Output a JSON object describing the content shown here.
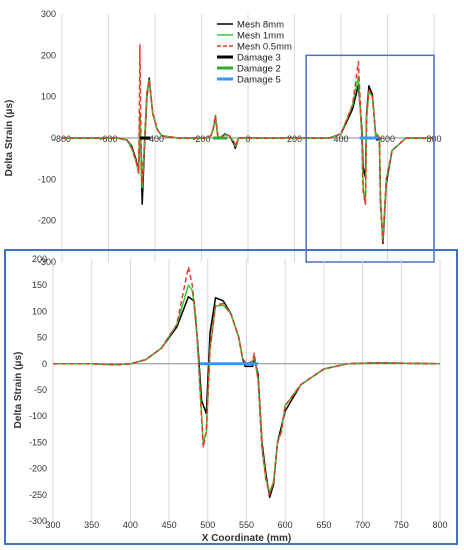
{
  "chart_data": [
    {
      "type": "line",
      "title": "",
      "xlabel": "",
      "ylabel": "Delta Strain (μs)",
      "xlim": [
        -800,
        800
      ],
      "ylim": [
        -300,
        300
      ],
      "xticks": [
        -800,
        -600,
        -400,
        -200,
        0,
        200,
        400,
        600,
        800
      ],
      "yticks": [
        -300,
        -200,
        -100,
        0,
        100,
        200,
        300
      ],
      "tick_labels_x": [
        "-800",
        "-600",
        "-400",
        "-200",
        "0",
        "200",
        "400",
        "600",
        "800"
      ],
      "tick_labels_y": [
        "-300",
        "-200",
        "-100",
        "0",
        "100",
        "200",
        "300"
      ],
      "grid": "vertical",
      "legend": "top-center",
      "zoom_box_x": [
        250,
        800
      ],
      "zoom_box_y": [
        -300,
        200
      ],
      "series": [
        {
          "name": "Mesh 8mm",
          "color": "#000000",
          "dash": "solid",
          "points": [
            [
              -800,
              0
            ],
            [
              -560,
              0
            ],
            [
              -520,
              -5
            ],
            [
              -500,
              -20
            ],
            [
              -480,
              -55
            ],
            [
              -470,
              -80
            ],
            [
              -465,
              60
            ],
            [
              -460,
              -40
            ],
            [
              -455,
              -160
            ],
            [
              -445,
              -20
            ],
            [
              -435,
              100
            ],
            [
              -425,
              145
            ],
            [
              -410,
              60
            ],
            [
              -390,
              20
            ],
            [
              -370,
              5
            ],
            [
              -300,
              0
            ],
            [
              -180,
              0
            ],
            [
              -160,
              5
            ],
            [
              -150,
              20
            ],
            [
              -140,
              50
            ],
            [
              -130,
              5
            ],
            [
              -120,
              0
            ],
            [
              -100,
              10
            ],
            [
              -80,
              5
            ],
            [
              -60,
              -15
            ],
            [
              -55,
              -25
            ],
            [
              -40,
              0
            ],
            [
              200,
              0
            ],
            [
              350,
              0
            ],
            [
              400,
              10
            ],
            [
              450,
              70
            ],
            [
              475,
              128
            ],
            [
              490,
              20
            ],
            [
              495,
              -70
            ],
            [
              505,
              -95
            ],
            [
              510,
              60
            ],
            [
              520,
              126
            ],
            [
              535,
              105
            ],
            [
              550,
              0
            ],
            [
              555,
              -5
            ],
            [
              565,
              0
            ],
            [
              570,
              -150
            ],
            [
              580,
              -255
            ],
            [
              595,
              -110
            ],
            [
              620,
              -30
            ],
            [
              680,
              0
            ],
            [
              800,
              0
            ]
          ]
        },
        {
          "name": "Mesh 1mm",
          "color": "#33cc33",
          "dash": "solid",
          "points": [
            [
              -800,
              0
            ],
            [
              -560,
              0
            ],
            [
              -520,
              -5
            ],
            [
              -500,
              -25
            ],
            [
              -480,
              -60
            ],
            [
              -470,
              -85
            ],
            [
              -465,
              60
            ],
            [
              -460,
              -30
            ],
            [
              -455,
              -120
            ],
            [
              -445,
              -10
            ],
            [
              -435,
              110
            ],
            [
              -425,
              140
            ],
            [
              -410,
              60
            ],
            [
              -390,
              20
            ],
            [
              -370,
              5
            ],
            [
              -300,
              0
            ],
            [
              -180,
              0
            ],
            [
              -160,
              5
            ],
            [
              -150,
              20
            ],
            [
              -140,
              55
            ],
            [
              -130,
              5
            ],
            [
              -120,
              0
            ],
            [
              -100,
              8
            ],
            [
              -80,
              5
            ],
            [
              -60,
              -10
            ],
            [
              -55,
              -20
            ],
            [
              -40,
              0
            ],
            [
              200,
              0
            ],
            [
              350,
              0
            ],
            [
              400,
              10
            ],
            [
              450,
              80
            ],
            [
              475,
              150
            ],
            [
              490,
              0
            ],
            [
              495,
              -120
            ],
            [
              505,
              -160
            ],
            [
              510,
              50
            ],
            [
              520,
              112
            ],
            [
              535,
              100
            ],
            [
              550,
              0
            ],
            [
              555,
              10
            ],
            [
              565,
              0
            ],
            [
              570,
              -160
            ],
            [
              580,
              -245
            ],
            [
              595,
              -100
            ],
            [
              620,
              -30
            ],
            [
              680,
              0
            ],
            [
              800,
              0
            ]
          ]
        },
        {
          "name": "Mesh 0.5mm",
          "color": "#e53a2b",
          "dash": "dashed",
          "points": [
            [
              -800,
              0
            ],
            [
              -560,
              0
            ],
            [
              -520,
              -5
            ],
            [
              -500,
              -25
            ],
            [
              -480,
              -60
            ],
            [
              -470,
              -85
            ],
            [
              -465,
              225
            ],
            [
              -460,
              -30
            ],
            [
              -455,
              -110
            ],
            [
              -445,
              -10
            ],
            [
              -435,
              110
            ],
            [
              -425,
              140
            ],
            [
              -410,
              60
            ],
            [
              -390,
              20
            ],
            [
              -370,
              5
            ],
            [
              -300,
              0
            ],
            [
              -180,
              0
            ],
            [
              -160,
              5
            ],
            [
              -150,
              20
            ],
            [
              -140,
              55
            ],
            [
              -130,
              5
            ],
            [
              -120,
              0
            ],
            [
              -100,
              8
            ],
            [
              -80,
              5
            ],
            [
              -60,
              -10
            ],
            [
              -55,
              -20
            ],
            [
              -40,
              0
            ],
            [
              200,
              0
            ],
            [
              350,
              0
            ],
            [
              400,
              10
            ],
            [
              450,
              80
            ],
            [
              475,
              185
            ],
            [
              490,
              0
            ],
            [
              495,
              -130
            ],
            [
              505,
              -160
            ],
            [
              510,
              50
            ],
            [
              520,
              115
            ],
            [
              535,
              100
            ],
            [
              550,
              0
            ],
            [
              555,
              10
            ],
            [
              565,
              0
            ],
            [
              570,
              -160
            ],
            [
              580,
              -250
            ],
            [
              595,
              -100
            ],
            [
              620,
              -30
            ],
            [
              680,
              0
            ],
            [
              800,
              0
            ]
          ]
        },
        {
          "name": "Damage 3",
          "color": "#000000",
          "dash": "thick",
          "points": [
            [
              -465,
              0
            ],
            [
              -420,
              0
            ]
          ]
        },
        {
          "name": "Damage 2",
          "color": "#33aa33",
          "dash": "thick",
          "points": [
            [
              -150,
              0
            ],
            [
              -90,
              0
            ]
          ]
        },
        {
          "name": "Damage 5",
          "color": "#3399ff",
          "dash": "thick",
          "points": [
            [
              480,
              0
            ],
            [
              560,
              0
            ]
          ]
        }
      ]
    },
    {
      "type": "line",
      "title": "",
      "xlabel": "X Coordinate (mm)",
      "ylabel": "Delta Strain (μs)",
      "xlim": [
        300,
        800
      ],
      "ylim": [
        -300,
        200
      ],
      "xticks": [
        300,
        350,
        400,
        450,
        500,
        550,
        600,
        650,
        700,
        750,
        800
      ],
      "yticks": [
        -300,
        -250,
        -200,
        -150,
        -100,
        -50,
        0,
        50,
        100,
        150,
        200
      ],
      "tick_labels_x": [
        "300",
        "350",
        "400",
        "450",
        "500",
        "550",
        "600",
        "650",
        "700",
        "750",
        "800"
      ],
      "tick_labels_y": [
        "-300",
        "-250",
        "-200",
        "-150",
        "-100",
        "-50",
        "0",
        "50",
        "100",
        "150",
        "200"
      ],
      "grid": "vertical",
      "series": [
        {
          "name": "Mesh 8mm",
          "color": "#000000",
          "dash": "solid",
          "points": [
            [
              300,
              0
            ],
            [
              350,
              0
            ],
            [
              380,
              -2
            ],
            [
              400,
              0
            ],
            [
              420,
              8
            ],
            [
              440,
              30
            ],
            [
              460,
              70
            ],
            [
              475,
              128
            ],
            [
              482,
              120
            ],
            [
              487,
              40
            ],
            [
              492,
              -70
            ],
            [
              498,
              -95
            ],
            [
              503,
              60
            ],
            [
              510,
              126
            ],
            [
              520,
              120
            ],
            [
              530,
              95
            ],
            [
              540,
              50
            ],
            [
              545,
              10
            ],
            [
              548,
              -5
            ],
            [
              558,
              -5
            ],
            [
              560,
              10
            ],
            [
              565,
              -20
            ],
            [
              570,
              -150
            ],
            [
              575,
              -210
            ],
            [
              580,
              -255
            ],
            [
              585,
              -230
            ],
            [
              590,
              -150
            ],
            [
              600,
              -90
            ],
            [
              620,
              -40
            ],
            [
              650,
              -10
            ],
            [
              680,
              0
            ],
            [
              720,
              2
            ],
            [
              800,
              0
            ]
          ]
        },
        {
          "name": "Mesh 1mm",
          "color": "#33cc33",
          "dash": "solid",
          "points": [
            [
              300,
              0
            ],
            [
              350,
              0
            ],
            [
              380,
              -2
            ],
            [
              400,
              0
            ],
            [
              420,
              8
            ],
            [
              440,
              30
            ],
            [
              460,
              75
            ],
            [
              475,
              150
            ],
            [
              480,
              140
            ],
            [
              485,
              80
            ],
            [
              490,
              -50
            ],
            [
              494,
              -150
            ],
            [
              498,
              -130
            ],
            [
              503,
              30
            ],
            [
              510,
              110
            ],
            [
              520,
              112
            ],
            [
              530,
              95
            ],
            [
              540,
              50
            ],
            [
              545,
              10
            ],
            [
              550,
              0
            ],
            [
              558,
              5
            ],
            [
              560,
              15
            ],
            [
              565,
              -30
            ],
            [
              570,
              -160
            ],
            [
              575,
              -220
            ],
            [
              580,
              -245
            ],
            [
              585,
              -225
            ],
            [
              590,
              -150
            ],
            [
              595,
              -130
            ],
            [
              600,
              -80
            ],
            [
              620,
              -40
            ],
            [
              650,
              -10
            ],
            [
              680,
              0
            ],
            [
              720,
              2
            ],
            [
              800,
              0
            ]
          ]
        },
        {
          "name": "Mesh 0.5mm",
          "color": "#e53a2b",
          "dash": "dashed",
          "points": [
            [
              300,
              0
            ],
            [
              350,
              0
            ],
            [
              380,
              -2
            ],
            [
              400,
              0
            ],
            [
              420,
              8
            ],
            [
              440,
              30
            ],
            [
              460,
              75
            ],
            [
              475,
              185
            ],
            [
              480,
              150
            ],
            [
              485,
              80
            ],
            [
              490,
              -50
            ],
            [
              494,
              -160
            ],
            [
              498,
              -130
            ],
            [
              503,
              30
            ],
            [
              510,
              112
            ],
            [
              520,
              115
            ],
            [
              530,
              95
            ],
            [
              540,
              50
            ],
            [
              545,
              10
            ],
            [
              550,
              0
            ],
            [
              558,
              5
            ],
            [
              560,
              20
            ],
            [
              565,
              -30
            ],
            [
              570,
              -160
            ],
            [
              575,
              -220
            ],
            [
              580,
              -250
            ],
            [
              585,
              -225
            ],
            [
              590,
              -150
            ],
            [
              595,
              -130
            ],
            [
              600,
              -80
            ],
            [
              620,
              -40
            ],
            [
              650,
              -10
            ],
            [
              680,
              0
            ],
            [
              720,
              2
            ],
            [
              800,
              0
            ]
          ]
        },
        {
          "name": "Damage 5",
          "color": "#3399ff",
          "dash": "thick",
          "points": [
            [
              490,
              0
            ],
            [
              565,
              0
            ]
          ]
        }
      ]
    }
  ]
}
